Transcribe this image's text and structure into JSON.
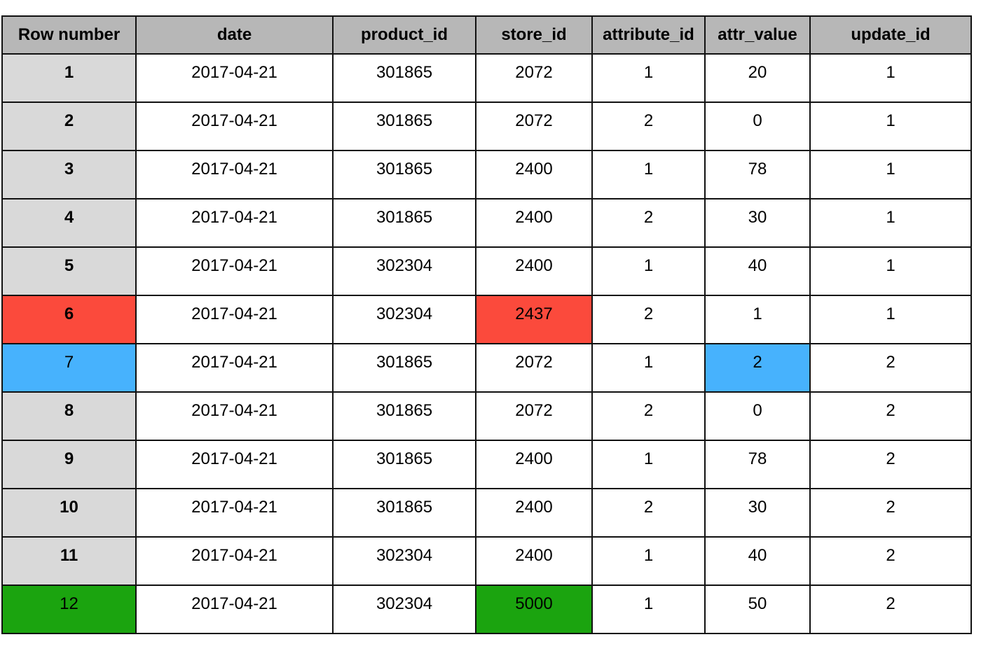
{
  "table": {
    "columns": [
      "Row number",
      "date",
      "product_id",
      "store_id",
      "attribute_id",
      "attr_value",
      "update_id"
    ],
    "rows": [
      [
        1,
        "2017-04-21",
        301865,
        2072,
        1,
        20,
        1
      ],
      [
        2,
        "2017-04-21",
        301865,
        2072,
        2,
        0,
        1
      ],
      [
        3,
        "2017-04-21",
        301865,
        2400,
        1,
        78,
        1
      ],
      [
        4,
        "2017-04-21",
        301865,
        2400,
        2,
        30,
        1
      ],
      [
        5,
        "2017-04-21",
        302304,
        2400,
        1,
        40,
        1
      ],
      [
        6,
        "2017-04-21",
        302304,
        2437,
        2,
        1,
        1
      ],
      [
        7,
        "2017-04-21",
        301865,
        2072,
        1,
        2,
        2
      ],
      [
        8,
        "2017-04-21",
        301865,
        2072,
        2,
        0,
        2
      ],
      [
        9,
        "2017-04-21",
        301865,
        2400,
        1,
        78,
        2
      ],
      [
        10,
        "2017-04-21",
        301865,
        2400,
        2,
        30,
        2
      ],
      [
        11,
        "2017-04-21",
        302304,
        2400,
        1,
        40,
        2
      ],
      [
        12,
        "2017-04-21",
        302304,
        5000,
        1,
        50,
        2
      ]
    ]
  }
}
